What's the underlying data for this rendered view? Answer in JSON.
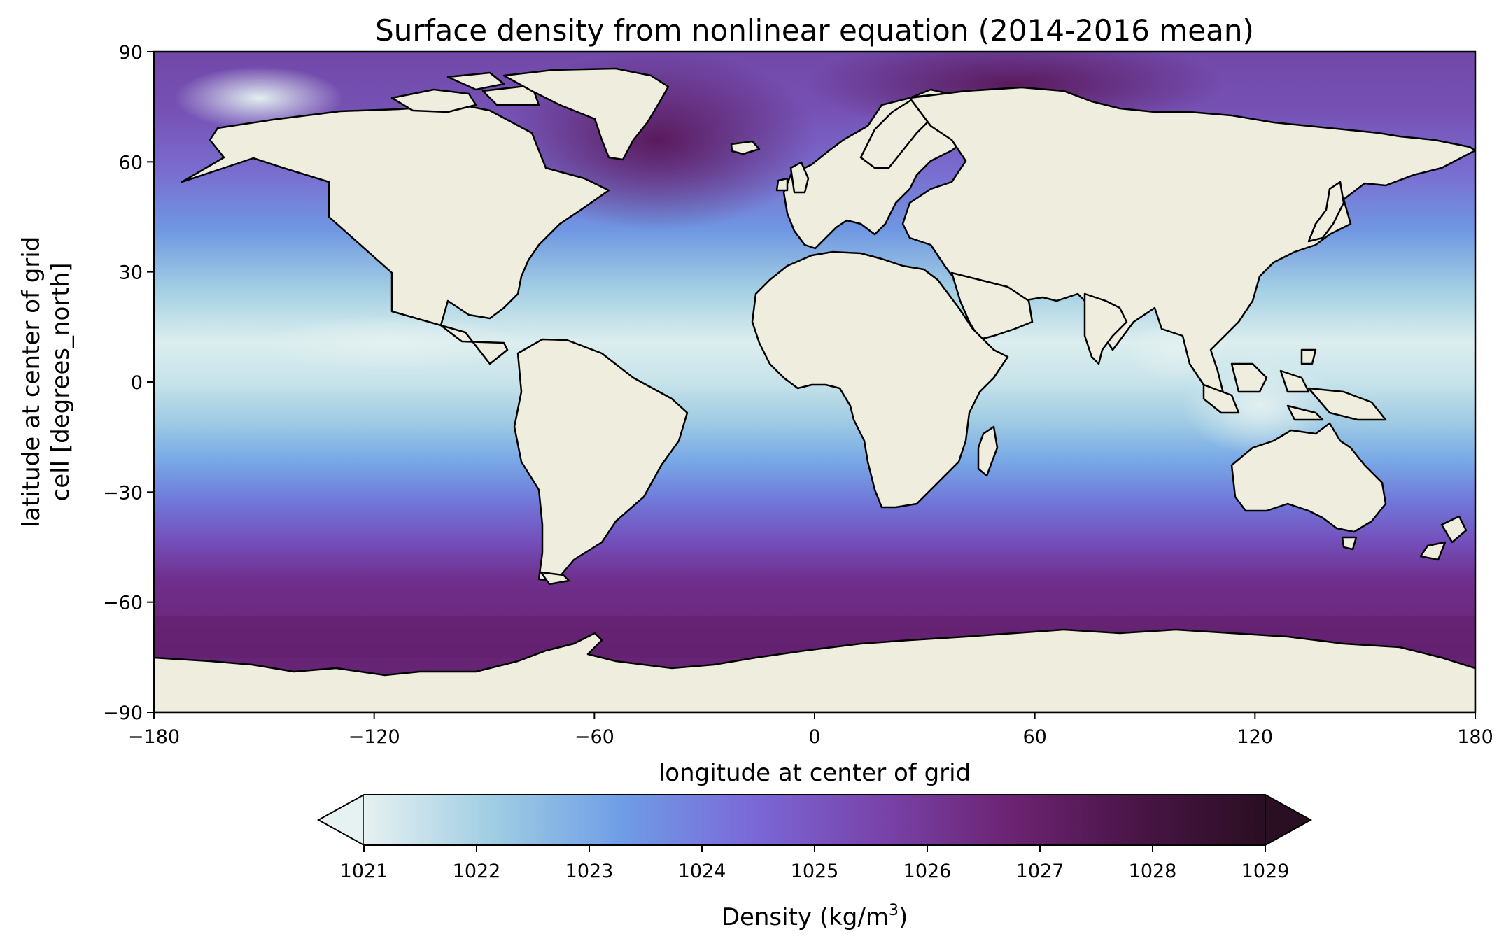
{
  "title": "Surface density from nonlinear equation (2014-2016 mean)",
  "map": {
    "projection": "PlateCarree",
    "xlabel": "longitude at center of grid",
    "ylabel_line1": "latitude at center of grid",
    "ylabel_line2": "cell [degrees_north]",
    "xlim": [
      -180,
      180
    ],
    "ylim": [
      -90,
      90
    ],
    "xticks": [
      -180,
      -120,
      -60,
      0,
      60,
      120,
      180
    ],
    "yticks": [
      -90,
      -60,
      -30,
      0,
      30,
      60,
      90
    ],
    "xtick_labels": [
      "−180",
      "−120",
      "−60",
      "0",
      "60",
      "120",
      "180"
    ],
    "ytick_labels": [
      "−90",
      "−60",
      "−30",
      "0",
      "30",
      "60",
      "90"
    ],
    "land_color": "#efedde",
    "coastline_color": "#000000"
  },
  "colorbar": {
    "label_prefix": "Density (kg/m",
    "label_sup": "3",
    "label_suffix": ")",
    "orientation": "horizontal",
    "placement": "below",
    "extend": "both",
    "min": 1021,
    "max": 1029,
    "ticks": [
      1021,
      1022,
      1023,
      1024,
      1025,
      1026,
      1027,
      1028,
      1029
    ],
    "tick_labels": [
      "1021",
      "1022",
      "1023",
      "1024",
      "1025",
      "1026",
      "1027",
      "1028",
      "1029"
    ],
    "colormap": "dense",
    "colors": [
      "#e6f1f1",
      "#9fcde3",
      "#6f9de6",
      "#7a69d8",
      "#7944ab",
      "#6d2474",
      "#4a1547",
      "#2a0e22"
    ]
  }
}
